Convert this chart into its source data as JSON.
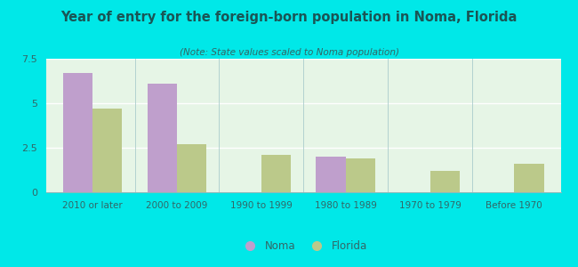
{
  "title": "Year of entry for the foreign-born population in Noma, Florida",
  "subtitle": "(Note: State values scaled to Noma population)",
  "categories": [
    "2010 or later",
    "2000 to 2009",
    "1990 to 1999",
    "1980 to 1989",
    "1970 to 1979",
    "Before 1970"
  ],
  "noma_values": [
    6.7,
    6.1,
    0,
    2.0,
    0,
    0
  ],
  "florida_values": [
    4.7,
    2.7,
    2.1,
    1.9,
    1.2,
    1.6
  ],
  "noma_color": "#bf9fcc",
  "florida_color": "#bbc98a",
  "background_outer": "#00e8e8",
  "background_inner": "#e6f5e6",
  "title_color": "#1a5555",
  "subtitle_color": "#336666",
  "tick_color": "#336666",
  "ylim": [
    0,
    7.5
  ],
  "yticks": [
    0,
    2.5,
    5,
    7.5
  ],
  "legend_labels": [
    "Noma",
    "Florida"
  ],
  "bar_width": 0.35
}
